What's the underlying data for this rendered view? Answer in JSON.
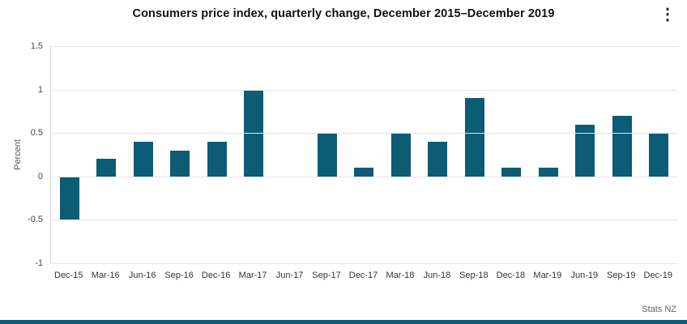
{
  "header": {
    "title": "Consumers price index, quarterly change, December 2015–December 2019",
    "menu_icon": "⋮"
  },
  "footer": {
    "source": "Stats NZ"
  },
  "chart_data": {
    "type": "bar",
    "title": "Consumers price index, quarterly change, December 2015–December 2019",
    "xlabel": "",
    "ylabel": "Percent",
    "categories": [
      "Dec-15",
      "Mar-16",
      "Jun-16",
      "Sep-16",
      "Dec-16",
      "Mar-17",
      "Jun-17",
      "Sep-17",
      "Dec-17",
      "Mar-18",
      "Jun-18",
      "Sep-18",
      "Dec-18",
      "Mar-19",
      "Jun-19",
      "Sep-19",
      "Dec-19"
    ],
    "values": [
      -0.5,
      0.2,
      0.4,
      0.3,
      0.4,
      1.0,
      0,
      0.5,
      0.1,
      0.5,
      0.4,
      0.9,
      0.1,
      0.1,
      0.6,
      0.7,
      0.5
    ],
    "ylim": [
      -1,
      1.5
    ],
    "yticks": [
      1.5,
      1,
      0.5,
      0,
      -0.5,
      -1
    ],
    "bar_color": "#0d5c75",
    "grid": true,
    "legend": "none"
  }
}
